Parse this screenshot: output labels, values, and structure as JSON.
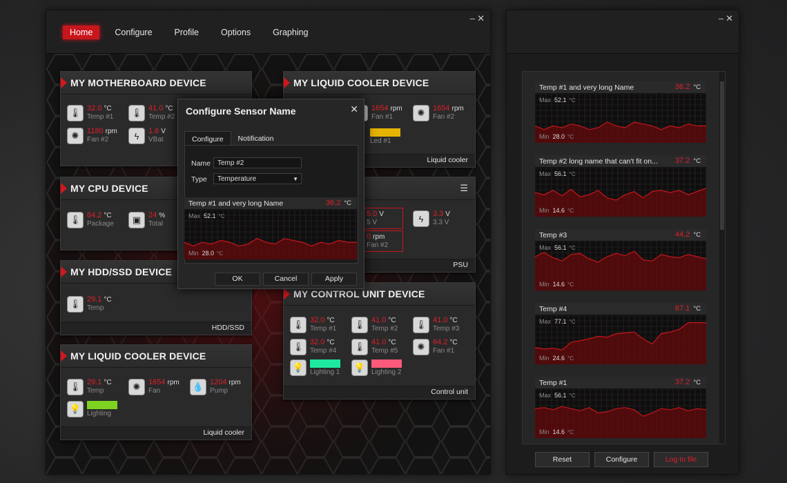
{
  "main_window": {
    "nav": [
      "Home",
      "Configure",
      "Profile",
      "Options",
      "Graphing"
    ],
    "active_tab": "Home"
  },
  "cards": {
    "motherboard": {
      "title": "MY MOTHERBOARD DEVICE",
      "sensors": [
        {
          "value": "32.0",
          "unit": "°C",
          "name": "Temp #1",
          "icon": "thermometer-icon"
        },
        {
          "value": "41.0",
          "unit": "°C",
          "name": "Temp #2",
          "icon": "thermometer-icon"
        },
        {
          "value": "1180",
          "unit": "rpm",
          "name": "Fan #2",
          "icon": "fan-icon"
        },
        {
          "value": "1.6",
          "unit": "V",
          "name": "VBat",
          "icon": "bolt-icon"
        }
      ]
    },
    "liquid_top": {
      "title": "MY LIQUID COOLER DEVICE",
      "footer": "Liquid cooler",
      "sensors": [
        {
          "value": "1654",
          "unit": "rpm",
          "name": "Fan #1",
          "icon": "fan-icon"
        },
        {
          "value": "1654",
          "unit": "rpm",
          "name": "Fan #2",
          "icon": "fan-icon"
        },
        {
          "name": "Led #1",
          "swatch": "#e6b400",
          "icon": "bulb-icon"
        }
      ]
    },
    "cpu": {
      "title": "MY CPU DEVICE",
      "sensors": [
        {
          "value": "64.2",
          "unit": "°C",
          "name": "Package",
          "icon": "thermometer-icon"
        },
        {
          "value": "24",
          "unit": "%",
          "name": "Total",
          "icon": "chip-icon"
        }
      ]
    },
    "psu": {
      "footer": "PSU",
      "sensors": [
        {
          "value": "5.0",
          "unit": "V",
          "name": "5 V",
          "icon": "bolt-icon"
        },
        {
          "value": "3.3",
          "unit": "V",
          "name": "3.3 V",
          "icon": "bolt-icon"
        },
        {
          "value": "0",
          "unit": "rpm",
          "name": "Fan #2",
          "icon": "fan-icon"
        }
      ]
    },
    "hdd": {
      "title": "MY HDD/SSD DEVICE",
      "footer": "HDD/SSD",
      "sensors": [
        {
          "value": "29.1",
          "unit": "°C",
          "name": "Temp",
          "icon": "thermometer-icon"
        }
      ]
    },
    "liquid_bottom": {
      "title": "MY LIQUID COOLER DEVICE",
      "footer": "Liquid cooler",
      "sensors": [
        {
          "value": "29.1",
          "unit": "°C",
          "name": "Temp",
          "icon": "thermometer-icon"
        },
        {
          "value": "1654",
          "unit": "rpm",
          "name": "Fan",
          "icon": "fan-icon"
        },
        {
          "value": "1204",
          "unit": "rpm",
          "name": "Pump",
          "icon": "drop-icon"
        },
        {
          "name": "Lighting",
          "swatch": "#7ed321",
          "icon": "bulb-icon"
        }
      ]
    },
    "control": {
      "title": "MY CONTROL UNIT DEVICE",
      "footer": "Control unit",
      "sensors": [
        {
          "value": "32.0",
          "unit": "°C",
          "name": "Temp #1",
          "icon": "thermometer-icon"
        },
        {
          "value": "41.0",
          "unit": "°C",
          "name": "Temp #2",
          "icon": "thermometer-icon"
        },
        {
          "value": "41.0",
          "unit": "°C",
          "name": "Temp #3",
          "icon": "thermometer-icon"
        },
        {
          "value": "32.0",
          "unit": "°C",
          "name": "Temp #4",
          "icon": "thermometer-icon"
        },
        {
          "value": "41.0",
          "unit": "°C",
          "name": "Temp #5",
          "icon": "thermometer-icon"
        },
        {
          "value": "64.2",
          "unit": "°C",
          "name": "Fan #1",
          "icon": "fan-icon"
        },
        {
          "name": "Lighting 1",
          "swatch": "#1de9a0",
          "icon": "bulb-icon"
        },
        {
          "name": "Lighting 2",
          "swatch": "#ff5a7a",
          "icon": "bulb-icon"
        }
      ]
    }
  },
  "modal": {
    "title": "Configure Sensor Name",
    "tabs": [
      "Configure",
      "Notification"
    ],
    "name_label": "Name",
    "name_value": "Temp #2",
    "type_label": "Type",
    "type_value": "Temperature",
    "preview": {
      "title": "Temp #1 and very long Name",
      "value": "36.2",
      "unit": "°C",
      "max_label": "Max",
      "max": "52.1",
      "min_label": "Min",
      "min": "28.0",
      "unit_small": "°C"
    },
    "buttons": {
      "ok": "OK",
      "cancel": "Cancel",
      "apply": "Apply"
    }
  },
  "graphs": [
    {
      "title": "Temp #1 and very long Name",
      "value": "36.2",
      "unit": "°C",
      "max": "52.1",
      "min": "28.0"
    },
    {
      "title": "Temp #2 long name that can't fit on...",
      "value": "37.2",
      "unit": "°C",
      "max": "56.1",
      "min": "14.6"
    },
    {
      "title": "Temp #3",
      "value": "44.2",
      "unit": "°C",
      "max": "56.1",
      "min": "14.6"
    },
    {
      "title": "Temp #4",
      "value": "67.1",
      "unit": "°C",
      "max": "77.1",
      "min": "24.6"
    },
    {
      "title": "Temp #1",
      "value": "37.2",
      "unit": "°C",
      "max": "56.1",
      "min": "14.6"
    }
  ],
  "graph_labels": {
    "max": "Max",
    "min": "Min",
    "unit": "°C"
  },
  "right_buttons": {
    "reset": "Reset",
    "configure": "Configure",
    "log": "Log to file"
  },
  "colors": {
    "accent": "#c8161d",
    "value_red": "#e02027",
    "graph_fill": "#5a0a0c",
    "graph_line": "#c8161d"
  },
  "chart_data": [
    {
      "type": "area",
      "x": [
        0,
        1,
        2,
        3,
        4,
        5,
        6,
        7,
        8,
        9,
        10,
        11,
        12,
        13,
        14,
        15,
        16,
        17,
        18,
        19
      ],
      "values": [
        36,
        34,
        36,
        35,
        37,
        36,
        34,
        35,
        38,
        36,
        35,
        38,
        37,
        36,
        34,
        36,
        35,
        37,
        36,
        36
      ],
      "ylim": [
        28.0,
        52.1
      ]
    },
    {
      "type": "area",
      "x": [
        0,
        1,
        2,
        3,
        4,
        5,
        6,
        7,
        8,
        9,
        10,
        11,
        12,
        13,
        14,
        15,
        16,
        17,
        18,
        19
      ],
      "values": [
        35,
        33,
        37,
        32,
        38,
        31,
        33,
        37,
        30,
        28,
        33,
        36,
        30,
        36,
        37,
        35,
        37,
        33,
        36,
        39
      ],
      "ylim": [
        14.6,
        56.1
      ]
    },
    {
      "type": "area",
      "x": [
        0,
        1,
        2,
        3,
        4,
        5,
        6,
        7,
        8,
        9,
        10,
        11,
        12,
        13,
        14,
        15,
        16,
        17,
        18,
        19
      ],
      "values": [
        44,
        48,
        43,
        40,
        46,
        47,
        42,
        39,
        44,
        47,
        45,
        49,
        41,
        40,
        46,
        44,
        43,
        46,
        44,
        42
      ],
      "ylim": [
        14.6,
        56.1
      ]
    },
    {
      "type": "area",
      "x": [
        0,
        1,
        2,
        3,
        4,
        5,
        6,
        7,
        8,
        9,
        10,
        11,
        12,
        13,
        14,
        15,
        16,
        17,
        18,
        19
      ],
      "values": [
        42,
        40,
        41,
        39,
        48,
        50,
        52,
        55,
        54,
        58,
        59,
        60,
        52,
        46,
        58,
        60,
        63,
        71,
        71,
        71
      ],
      "ylim": [
        24.6,
        77.1
      ]
    },
    {
      "type": "area",
      "x": [
        0,
        1,
        2,
        3,
        4,
        5,
        6,
        7,
        8,
        9,
        10,
        11,
        12,
        13,
        14,
        15,
        16,
        17,
        18,
        19
      ],
      "values": [
        40,
        41,
        39,
        42,
        40,
        38,
        41,
        36,
        37,
        40,
        41,
        39,
        33,
        36,
        40,
        39,
        41,
        38,
        40,
        39
      ],
      "ylim": [
        14.6,
        56.1
      ]
    }
  ]
}
